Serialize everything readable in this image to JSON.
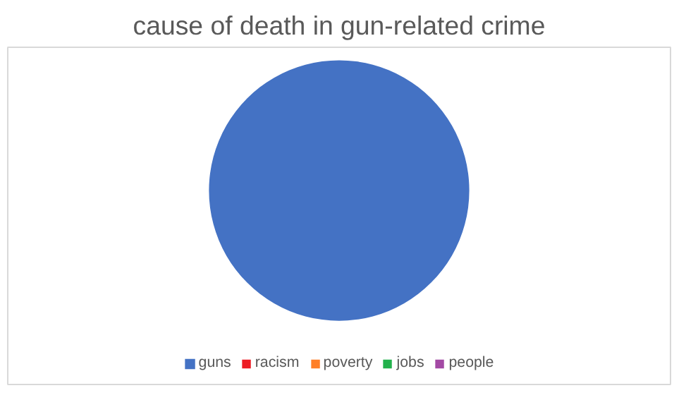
{
  "chart_data": {
    "type": "pie",
    "title": "cause of death in gun-related crime",
    "categories": [
      "guns",
      "racism",
      "poverty",
      "jobs",
      "people"
    ],
    "values": [
      100,
      0,
      0,
      0,
      0
    ],
    "colors": [
      "#4472c4",
      "#ed1c24",
      "#ff7f27",
      "#22b14c",
      "#a349a4"
    ],
    "legend": "bottom"
  }
}
